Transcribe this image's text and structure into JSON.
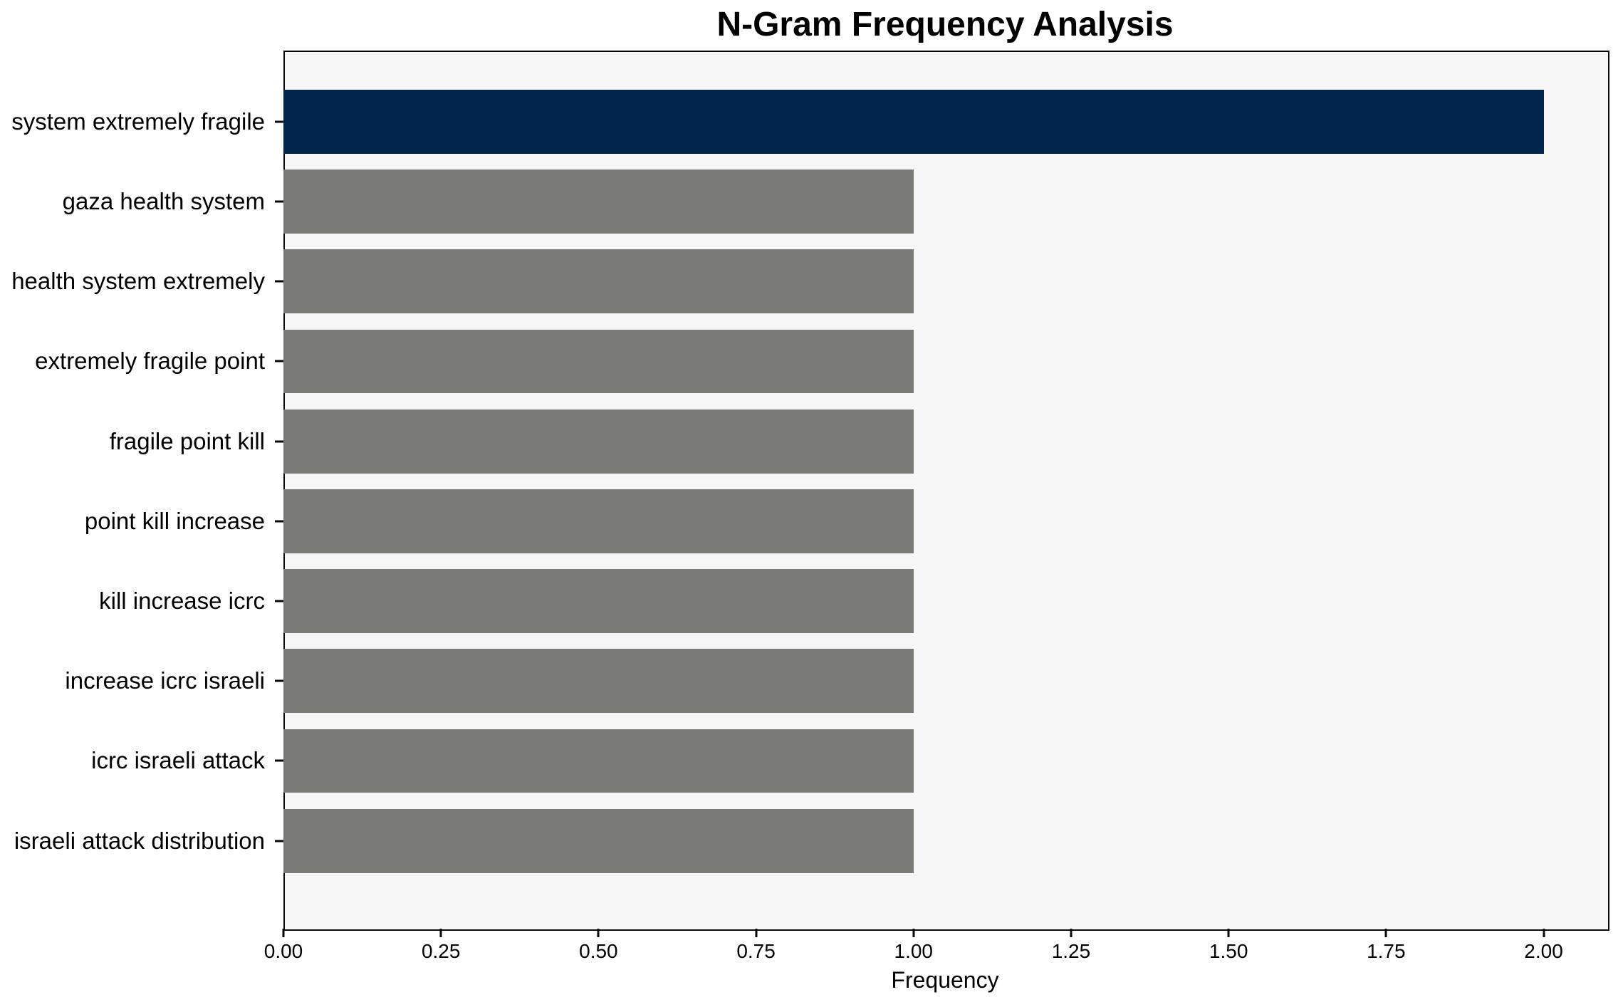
{
  "chart_data": {
    "type": "bar",
    "orientation": "horizontal",
    "title": "N-Gram Frequency Analysis",
    "xlabel": "Frequency",
    "ylabel": "",
    "categories": [
      "system extremely fragile",
      "gaza health system",
      "health system extremely",
      "extremely fragile point",
      "fragile point kill",
      "point kill increase",
      "kill increase icrc",
      "increase icrc israeli",
      "icrc israeli attack",
      "israeli attack distribution"
    ],
    "values": [
      2,
      1,
      1,
      1,
      1,
      1,
      1,
      1,
      1,
      1
    ],
    "xlim": [
      0,
      2.1
    ],
    "xticks": [
      0.0,
      0.25,
      0.5,
      0.75,
      1.0,
      1.25,
      1.5,
      1.75,
      2.0
    ],
    "xtick_labels": [
      "0.00",
      "0.25",
      "0.50",
      "0.75",
      "1.00",
      "1.25",
      "1.50",
      "1.75",
      "2.00"
    ],
    "grid": false,
    "legend": null,
    "highlight_index": 0,
    "colors": {
      "highlight_bar": "#02254e",
      "default_bar": "#7a7b77",
      "plot_background": "#f6f6f7",
      "spine": "#0a0a0a",
      "text": "#000000"
    }
  }
}
